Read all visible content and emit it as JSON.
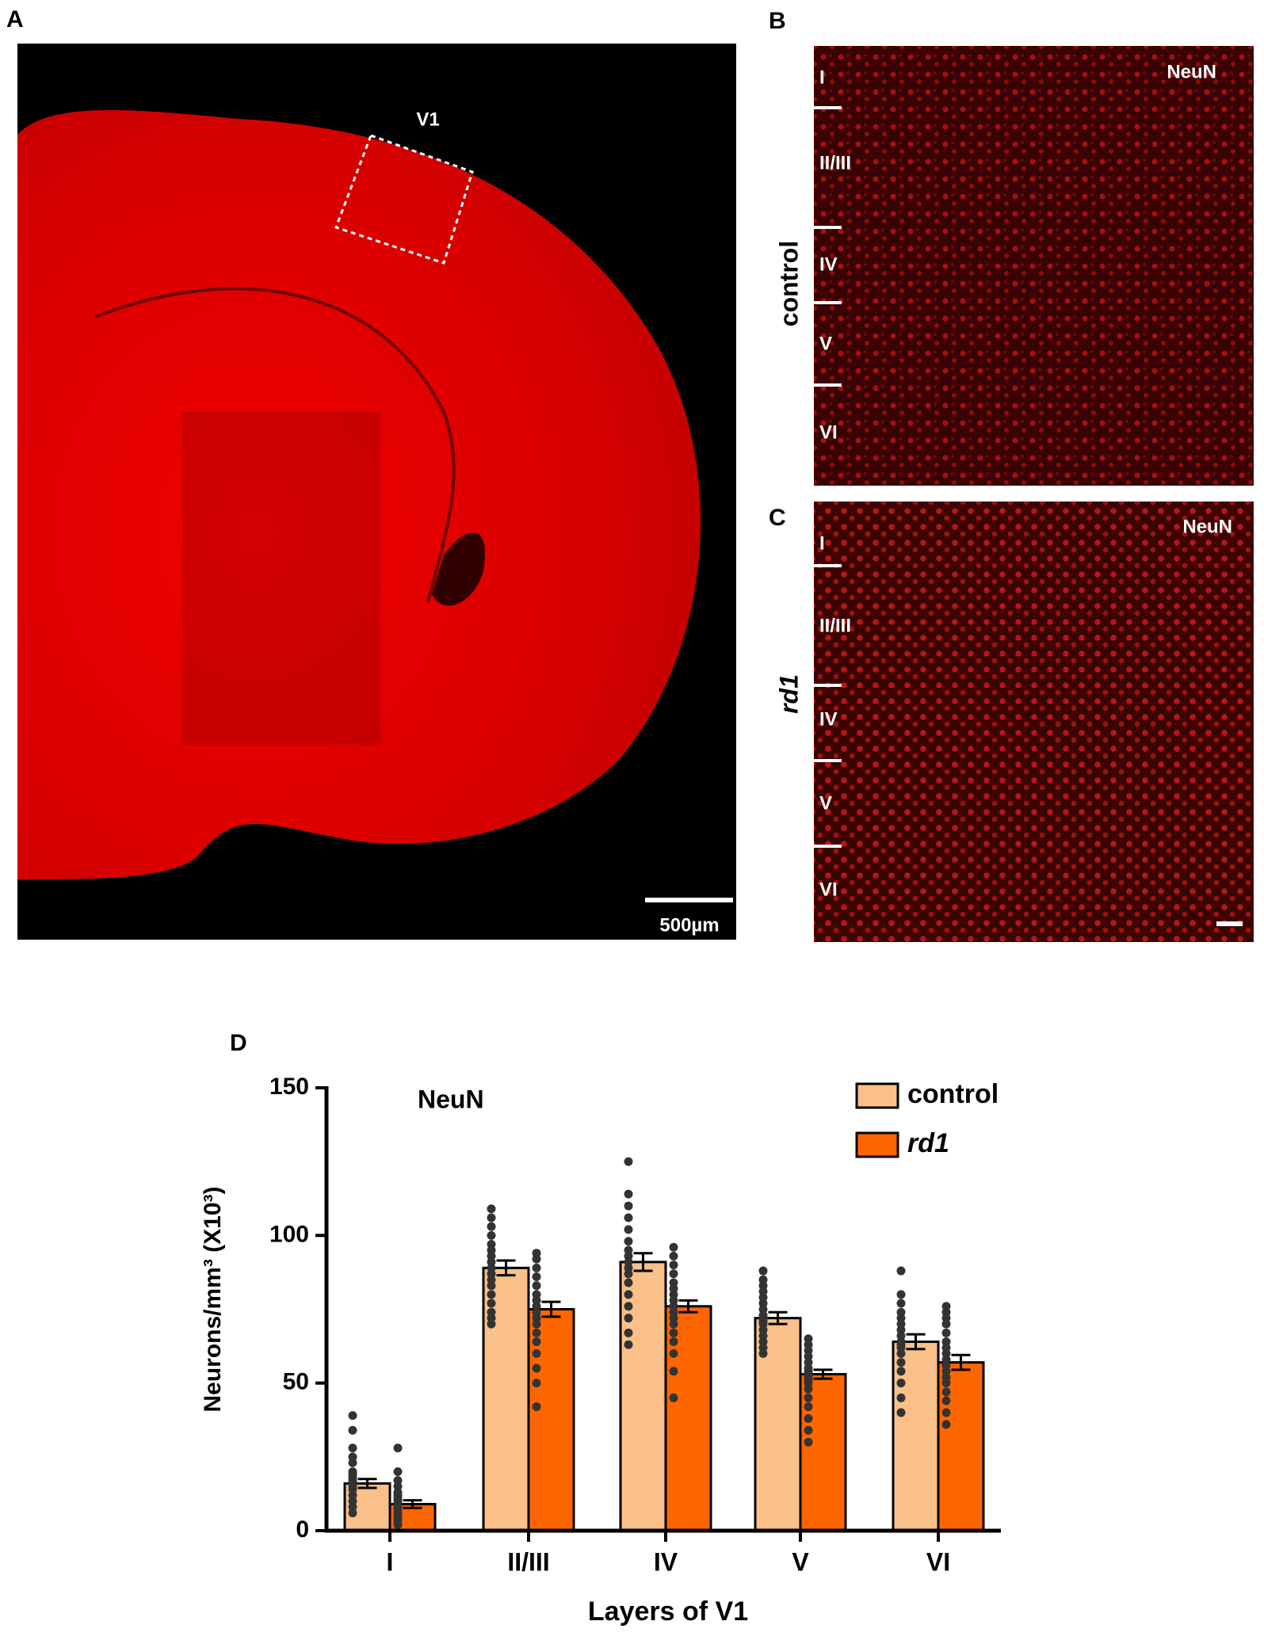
{
  "panel_a": {
    "label": "A",
    "region": "V1",
    "scale_bar": "500µm"
  },
  "panel_b": {
    "label": "B",
    "stain": "NeuN",
    "group": "control",
    "layers": [
      "I",
      "II/III",
      "IV",
      "V",
      "VI"
    ]
  },
  "panel_c": {
    "label": "C",
    "stain": "NeuN",
    "group": "rd1",
    "layers": [
      "I",
      "II/III",
      "IV",
      "V",
      "VI"
    ]
  },
  "panel_d_label": "D",
  "chart_data": {
    "type": "bar",
    "annotation": "NeuN",
    "y_label": "Neurons/mm³ (X10³)",
    "x_label": "Layers of V1",
    "categories": [
      "I",
      "II/III",
      "IV",
      "V",
      "VI"
    ],
    "ylim": [
      0,
      150
    ],
    "yticks": [
      0,
      50,
      100,
      150
    ],
    "legend": "top-right",
    "series": [
      {
        "name": "control",
        "color": "#f9c08a",
        "values": [
          16,
          89,
          91,
          72,
          64
        ],
        "errors": [
          1.5,
          2.5,
          3,
          2,
          2.5
        ],
        "points": [
          [
            39,
            34,
            28,
            25,
            23,
            20,
            19,
            18,
            17,
            16,
            15,
            14,
            12,
            10,
            8,
            6
          ],
          [
            109,
            106,
            103,
            100,
            97,
            95,
            93,
            91,
            89,
            87,
            85,
            83,
            80,
            77,
            74,
            72,
            70
          ],
          [
            125,
            114,
            110,
            106,
            102,
            98,
            95,
            93,
            91,
            89,
            87,
            84,
            80,
            76,
            72,
            67,
            63
          ],
          [
            88,
            85,
            83,
            81,
            79,
            77,
            75,
            73,
            72,
            71,
            70,
            68,
            66,
            64,
            62,
            60
          ],
          [
            88,
            80,
            77,
            74,
            72,
            70,
            68,
            66,
            64,
            63,
            62,
            60,
            57,
            54,
            50,
            45,
            40
          ]
        ]
      },
      {
        "name": "rd1",
        "color": "#ff6600",
        "values": [
          9,
          75,
          76,
          53,
          57
        ],
        "errors": [
          1.3,
          2.5,
          2,
          1.5,
          2.5
        ],
        "points": [
          [
            28,
            20,
            17,
            15,
            13,
            12,
            11,
            10,
            9,
            8,
            7,
            6,
            5,
            4,
            3,
            2
          ],
          [
            94,
            92,
            89,
            86,
            83,
            80,
            78,
            76,
            74,
            72,
            70,
            67,
            64,
            60,
            55,
            50,
            42
          ],
          [
            96,
            93,
            90,
            87,
            84,
            82,
            80,
            78,
            76,
            74,
            72,
            70,
            67,
            64,
            60,
            54,
            45
          ],
          [
            65,
            63,
            61,
            59,
            57,
            55,
            54,
            53,
            52,
            51,
            50,
            48,
            45,
            42,
            38,
            34,
            30
          ],
          [
            76,
            74,
            72,
            70,
            67,
            64,
            62,
            60,
            58,
            56,
            54,
            52,
            50,
            47,
            44,
            40,
            36
          ]
        ]
      }
    ]
  }
}
